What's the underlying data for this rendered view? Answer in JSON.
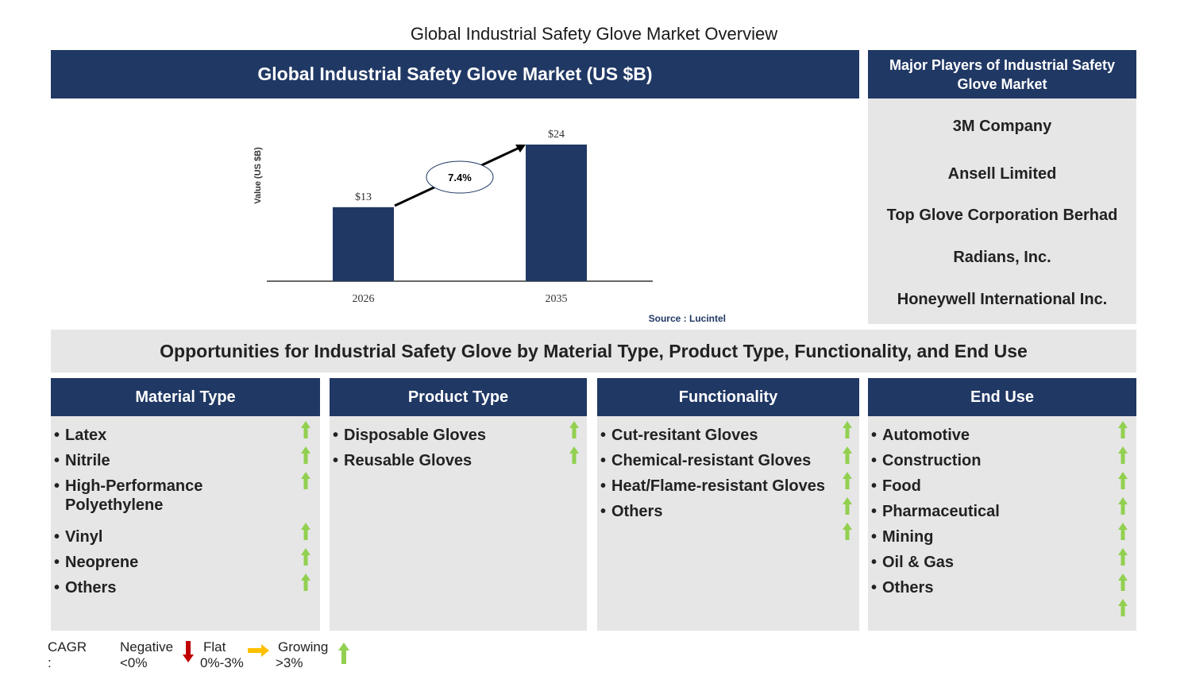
{
  "title": "Global Industrial Safety Glove Market Overview",
  "chart_header": "Global Industrial Safety Glove Market (US $B)",
  "chart_data": {
    "type": "bar",
    "categories": [
      "2026",
      "2035"
    ],
    "values": [
      13,
      24
    ],
    "data_labels": [
      "$13",
      "$24"
    ],
    "ylabel": "Value (US $B)",
    "annotation": "7.4%",
    "bar_color": "#203864",
    "source": "Source : Lucintel"
  },
  "players": {
    "title": "Major Players of Industrial Safety Glove Market",
    "items": [
      "3M Company",
      "Ansell Limited",
      "Top Glove Corporation Berhad",
      "Radians, Inc.",
      "Honeywell International Inc."
    ]
  },
  "opportunities_title": "Opportunities for Industrial Safety Glove by Material Type, Product Type, Functionality, and End Use",
  "columns": [
    {
      "title": "Material Type",
      "items": [
        "Latex",
        "Nitrile",
        "High-Performance Polyethylene",
        "Vinyl",
        "Neoprene",
        "Others"
      ]
    },
    {
      "title": "Product Type",
      "items": [
        "Disposable Gloves",
        "Reusable Gloves"
      ]
    },
    {
      "title": "Functionality",
      "items": [
        "Cut-resitant Gloves",
        "Chemical-resistant Gloves",
        "Heat/Flame-resistant Gloves",
        "Others"
      ]
    },
    {
      "title": "End Use",
      "items": [
        "Automotive",
        "Construction",
        "Food",
        "Pharmaceutical",
        "Mining",
        "Oil & Gas",
        "Others"
      ]
    }
  ],
  "legend": {
    "label": "CAGR :",
    "negative": "Negative",
    "negative_range": "<0%",
    "flat": "Flat",
    "flat_range": "0%-3%",
    "growing": "Growing",
    "growing_range": ">3%",
    "colors": {
      "negative": "#c00000",
      "flat": "#ffc000",
      "growing": "#92d050"
    }
  }
}
